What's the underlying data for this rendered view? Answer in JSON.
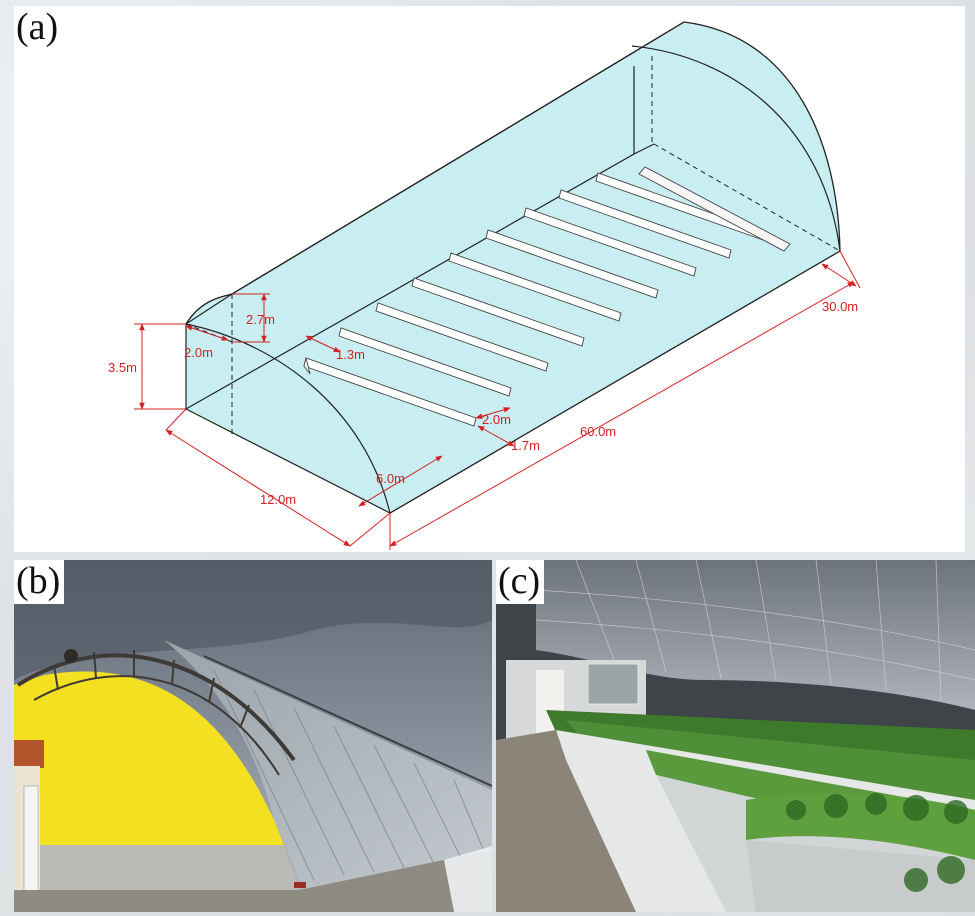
{
  "panels": {
    "a": {
      "label": "(a)"
    },
    "b": {
      "label": "(b)"
    },
    "c": {
      "label": "(c)"
    }
  },
  "dimensions": {
    "height": "3.5m",
    "ridge": "2.7m",
    "back_depth": "2.0m",
    "row_gap": "1.3m",
    "row_width": "2.0m",
    "row_end_gap": "1.7m",
    "bed_offset": "6.0m",
    "span": "12.0m",
    "length": "60.0m",
    "half_length": "30.0m"
  },
  "colors": {
    "dimension": "#d42020",
    "glass": "#c9eef2",
    "wall_yellow": "#f3e020",
    "sky": "#7b8591"
  }
}
